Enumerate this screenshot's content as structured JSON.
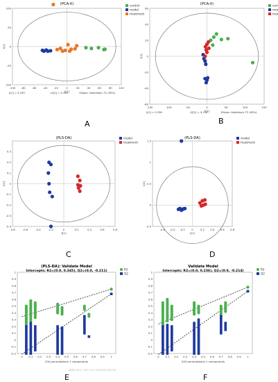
{
  "colors": {
    "control": "#4caf50",
    "model": "#1f3a9e",
    "treatment": "#d62728",
    "orange": "#e87722",
    "r2": "#3cb043",
    "q2": "#1f3a9e"
  },
  "panels": {
    "A": "A",
    "B": "B",
    "C": "C",
    "D": "D",
    "E": "E",
    "F": "F"
  },
  "watermark": "SIMCA 15.0 - 2017-4-27 10:24:09 (UTC+8)",
  "chart_data": [
    {
      "id": "A",
      "type": "scatter",
      "title": "(PCA-X)",
      "xlabel": "t[1]",
      "ylabel": "t[2]",
      "xlim": [
        -100,
        100
      ],
      "ylim": [
        -100,
        100
      ],
      "xticks": [
        -100,
        -80,
        -60,
        -40,
        -20,
        0,
        20,
        40,
        60,
        80,
        100
      ],
      "yticks": [
        -100,
        -50,
        0,
        50,
        100
      ],
      "footer": [
        "t[1] = 0.249",
        "t2[2] = 0.165",
        "Ellipse: Hotelling's T2 (95%)"
      ],
      "legend": [
        "control",
        "model",
        "treatment"
      ],
      "series": [
        {
          "name": "control",
          "color": "green",
          "points": [
            [
              35,
              -3
            ],
            [
              45,
              -5
            ],
            [
              58,
              -3
            ],
            [
              68,
              -8
            ],
            [
              70,
              -7
            ]
          ]
        },
        {
          "name": "model",
          "color": "blue",
          "points": [
            [
              -45,
              -10
            ],
            [
              -42,
              -12
            ],
            [
              -38,
              -9
            ],
            [
              -35,
              -12
            ],
            [
              -30,
              -11
            ]
          ]
        },
        {
          "name": "treatment",
          "color": "orange",
          "points": [
            [
              -25,
              110
            ],
            [
              -18,
              -8
            ],
            [
              -12,
              -5
            ],
            [
              -8,
              -12
            ],
            [
              -3,
              -10
            ],
            [
              2,
              5
            ],
            [
              5,
              -12
            ],
            [
              8,
              -7
            ],
            [
              15,
              -6
            ],
            [
              18,
              2
            ]
          ]
        }
      ]
    },
    {
      "id": "B",
      "type": "scatter",
      "title": "(PCA-X)",
      "xlabel": "t[1]",
      "ylabel": "t[2]",
      "xlim": [
        -150,
        150
      ],
      "ylim": [
        -60,
        60
      ],
      "xticks": [
        -150,
        -100,
        -50,
        0,
        50,
        100,
        150
      ],
      "yticks": [
        -60,
        -40,
        -20,
        0,
        20,
        40,
        60
      ],
      "footer": [
        "t[1] = 0.336",
        "t2[2] = 0.126",
        "Ellipse: Hotelling's T2 (95%)"
      ],
      "legend": [
        "control",
        "model",
        "treatment"
      ],
      "series": [
        {
          "name": "control",
          "color": "green",
          "points": [
            [
              10,
              20
            ],
            [
              18,
              24
            ],
            [
              25,
              28
            ],
            [
              38,
              21
            ],
            [
              55,
              22
            ],
            [
              120,
              -8
            ],
            [
              15,
              14
            ]
          ]
        },
        {
          "name": "model",
          "color": "blue",
          "points": [
            [
              -10,
              2
            ],
            [
              -8,
              -3
            ],
            [
              -5,
              -6
            ],
            [
              -3,
              -10
            ],
            [
              -5,
              -28
            ],
            [
              0,
              -30
            ],
            [
              -2,
              -33
            ],
            [
              2,
              -27
            ]
          ]
        },
        {
          "name": "treatment",
          "color": "red",
          "points": [
            [
              -4,
              12
            ],
            [
              0,
              15
            ],
            [
              4,
              18
            ],
            [
              -2,
              8
            ],
            [
              5,
              10
            ],
            [
              0,
              5
            ],
            [
              -5,
              0
            ]
          ]
        }
      ]
    },
    {
      "id": "C",
      "type": "scatter",
      "title": "(PLS-DA)",
      "xlabel": "t[1]",
      "ylabel": "t[2]",
      "xlim": [
        -0.8,
        0.8
      ],
      "ylim": [
        -0.4,
        0.4
      ],
      "xticks": [
        -0.8,
        -0.6,
        -0.4,
        -0.2,
        0,
        0.2,
        0.4,
        0.6,
        0.8
      ],
      "yticks": [
        -0.4,
        -0.3,
        -0.2,
        -0.1,
        0,
        0.1,
        0.2,
        0.3
      ],
      "legend": [
        "model",
        "treatment"
      ],
      "series": [
        {
          "name": "model",
          "color": "blue",
          "points": [
            [
              -0.23,
              0.2
            ],
            [
              -0.2,
              0.18
            ],
            [
              -0.24,
              0.1
            ],
            [
              -0.23,
              0
            ],
            [
              -0.22,
              -0.08
            ],
            [
              -0.18,
              -0.12
            ],
            [
              -0.2,
              -0.4
            ]
          ]
        },
        {
          "name": "treatment",
          "color": "red",
          "points": [
            [
              0.22,
              0.07
            ],
            [
              0.25,
              0.03
            ],
            [
              0.22,
              -0.01
            ],
            [
              0.26,
              -0.02
            ],
            [
              0.23,
              -0.04
            ],
            [
              0.25,
              -0.07
            ]
          ]
        }
      ]
    },
    {
      "id": "D",
      "type": "scatter",
      "title": "(PLS-DA)",
      "xlabel": "t[1]",
      "ylabel": "t[2]",
      "xlim": [
        -0.8,
        0.8
      ],
      "ylim": [
        -0.5,
        1.5
      ],
      "xticks": [
        -0.6,
        -0.4,
        -0.2,
        0,
        0.2,
        0.4,
        0.6,
        0.8
      ],
      "yticks": [
        -0.5,
        0,
        0.5,
        1,
        1.5
      ],
      "legend": [
        "model",
        "treatment"
      ],
      "series": [
        {
          "name": "model",
          "color": "blue",
          "points": [
            [
              -0.22,
              1.5
            ],
            [
              -0.28,
              -0.1
            ],
            [
              -0.25,
              -0.08
            ],
            [
              -0.22,
              -0.12
            ],
            [
              -0.2,
              -0.1
            ],
            [
              -0.18,
              -0.09
            ],
            [
              -0.15,
              -0.08
            ]
          ]
        },
        {
          "name": "treatment",
          "color": "red",
          "points": [
            [
              0.15,
              0.05
            ],
            [
              0.2,
              0.1
            ],
            [
              0.25,
              0.12
            ],
            [
              0.18,
              -0.02
            ],
            [
              0.22,
              0.0
            ],
            [
              0.26,
              0.02
            ]
          ]
        }
      ]
    },
    {
      "id": "E",
      "type": "scatter",
      "title": "(PLS-DA): Validate Model",
      "subtitle": "Intercepts: R2=(0.0, 0.345), Q2=(0.0, -0.211)",
      "xlabel": "200 permutations 1 components",
      "xlim": [
        -0.05,
        1.05
      ],
      "ylim": [
        -0.2,
        1.0
      ],
      "xticks": [
        0,
        0.1,
        0.2,
        0.3,
        0.4,
        0.5,
        0.6,
        0.7,
        0.8,
        0.9,
        1
      ],
      "yticks": [
        -0.2,
        -0.1,
        0,
        0.1,
        0.2,
        0.3,
        0.4,
        0.5,
        0.6,
        0.7,
        0.8,
        0.9,
        1
      ],
      "legend": [
        "R2",
        "Q2"
      ],
      "r2_line": [
        [
          0,
          0.345
        ],
        [
          1,
          0.75
        ]
      ],
      "q2_line": [
        [
          0,
          -0.211
        ],
        [
          1,
          0.68
        ]
      ],
      "series": [
        {
          "name": "R2",
          "color": "green",
          "xs": [
            0.05,
            0.1,
            0.15,
            0.4,
            0.45,
            0.7,
            0.75,
            1.0
          ],
          "yranges": [
            [
              0.2,
              0.5
            ],
            [
              0.28,
              0.58
            ],
            [
              0.33,
              0.55
            ],
            [
              0.4,
              0.53
            ],
            [
              0.38,
              0.48
            ],
            [
              0.45,
              0.5
            ],
            [
              0.35,
              0.38
            ],
            [
              0.75,
              0.75
            ]
          ]
        },
        {
          "name": "Q2",
          "color": "blue",
          "xs": [
            0.05,
            0.1,
            0.15,
            0.4,
            0.45,
            0.7,
            0.75,
            1.0
          ],
          "yranges": [
            [
              -0.2,
              0.2
            ],
            [
              -0.2,
              0.25
            ],
            [
              -0.15,
              0.2
            ],
            [
              -0.2,
              0.2
            ],
            [
              -0.2,
              0.18
            ],
            [
              0.1,
              0.35
            ],
            [
              0.05,
              0.05
            ],
            [
              0.68,
              0.68
            ]
          ]
        }
      ]
    },
    {
      "id": "F",
      "type": "scatter",
      "title": "Validate Model",
      "subtitle": "Intercepts: R2=(0.0, 0.236), Q2=(0.0, -0.214)",
      "xlabel": "200 permutations 1 components",
      "xlim": [
        -0.05,
        1.05
      ],
      "ylim": [
        -0.2,
        1.0
      ],
      "xticks": [
        0,
        0.1,
        0.2,
        0.3,
        0.4,
        0.5,
        0.6,
        0.7,
        0.8,
        0.9,
        1
      ],
      "yticks": [
        -0.2,
        -0.1,
        0,
        0.1,
        0.2,
        0.3,
        0.4,
        0.5,
        0.6,
        0.7,
        0.8,
        0.9,
        1
      ],
      "legend": [
        "R2",
        "Q2"
      ],
      "r2_line": [
        [
          0,
          0.236
        ],
        [
          1,
          0.78
        ]
      ],
      "q2_line": [
        [
          0,
          -0.214
        ],
        [
          1,
          0.72
        ]
      ],
      "series": [
        {
          "name": "R2",
          "color": "green",
          "xs": [
            0.05,
            0.1,
            0.15,
            0.4,
            0.45,
            0.7,
            0.75,
            1.0
          ],
          "yranges": [
            [
              0.2,
              0.55
            ],
            [
              0.28,
              0.6
            ],
            [
              0.3,
              0.5
            ],
            [
              0.38,
              0.55
            ],
            [
              0.4,
              0.5
            ],
            [
              0.35,
              0.5
            ],
            [
              0.42,
              0.55
            ],
            [
              0.78,
              0.78
            ]
          ]
        },
        {
          "name": "Q2",
          "color": "blue",
          "xs": [
            0.05,
            0.1,
            0.15,
            0.4,
            0.45,
            0.7,
            0.75,
            1.0
          ],
          "yranges": [
            [
              -0.2,
              0.2
            ],
            [
              -0.2,
              0.22
            ],
            [
              -0.15,
              0.2
            ],
            [
              -0.2,
              0.25
            ],
            [
              -0.2,
              0.3
            ],
            [
              0.1,
              0.35
            ],
            [
              0.15,
              0.25
            ],
            [
              0.72,
              0.72
            ]
          ]
        }
      ]
    }
  ]
}
